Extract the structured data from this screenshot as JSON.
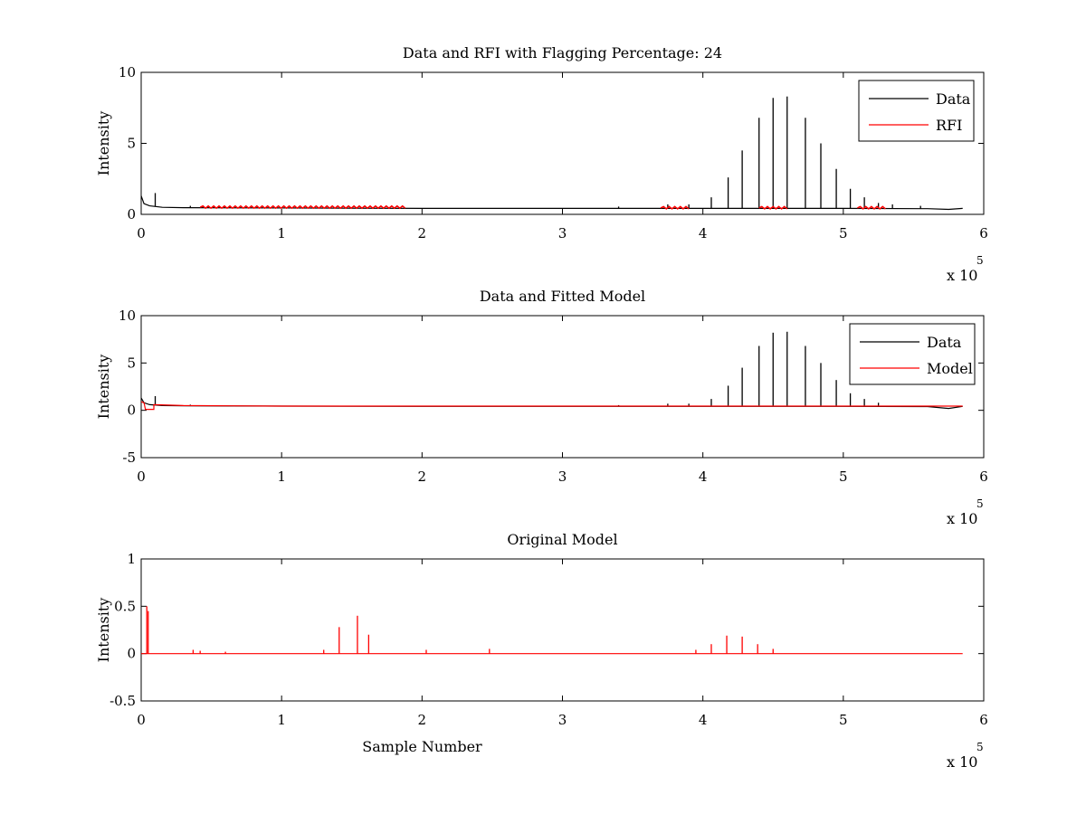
{
  "chart_data": [
    {
      "type": "line",
      "title": "Data and RFI with Flagging Percentage: 24",
      "xlabel": "",
      "ylabel": "Intensity",
      "xlim": [
        0,
        6
      ],
      "ylim": [
        0,
        10
      ],
      "xticks": [
        "0",
        "1",
        "2",
        "3",
        "4",
        "5",
        "6"
      ],
      "yticks": [
        "0",
        "5",
        "10"
      ],
      "x_unit": "x 10",
      "x_exponent": "5",
      "legend_position": "top-right",
      "grid": false,
      "series": [
        {
          "name": "Data",
          "color": "#000000",
          "baseline": [
            [
              0,
              1.3
            ],
            [
              0.02,
              0.75
            ],
            [
              0.06,
              0.6
            ],
            [
              0.15,
              0.5
            ],
            [
              0.3,
              0.47
            ],
            [
              1.0,
              0.45
            ],
            [
              2.0,
              0.42
            ],
            [
              3.0,
              0.42
            ],
            [
              4.0,
              0.42
            ],
            [
              5.0,
              0.42
            ],
            [
              5.6,
              0.4
            ],
            [
              5.75,
              0.35
            ],
            [
              5.85,
              0.42
            ]
          ],
          "spikes": [
            [
              0.1,
              1.5
            ],
            [
              0.35,
              0.6
            ],
            [
              3.4,
              0.55
            ],
            [
              3.75,
              0.7
            ],
            [
              3.9,
              0.7
            ],
            [
              4.06,
              1.2
            ],
            [
              4.18,
              2.6
            ],
            [
              4.28,
              4.5
            ],
            [
              4.4,
              6.8
            ],
            [
              4.5,
              8.2
            ],
            [
              4.6,
              8.3
            ],
            [
              4.73,
              6.8
            ],
            [
              4.84,
              5.0
            ],
            [
              4.95,
              3.2
            ],
            [
              5.05,
              1.8
            ],
            [
              5.15,
              1.2
            ],
            [
              5.25,
              0.8
            ],
            [
              5.35,
              0.7
            ],
            [
              5.55,
              0.6
            ]
          ]
        },
        {
          "name": "RFI",
          "color": "#ff0000",
          "segments": [
            [
              0.42,
              1.88,
              0.5
            ],
            [
              3.7,
              3.9,
              0.45
            ],
            [
              4.4,
              4.6,
              0.45
            ],
            [
              5.1,
              5.3,
              0.45
            ]
          ]
        }
      ]
    },
    {
      "type": "line",
      "title": "Data and Fitted Model",
      "xlabel": "",
      "ylabel": "Intensity",
      "xlim": [
        0,
        6
      ],
      "ylim": [
        -5,
        10
      ],
      "xticks": [
        "0",
        "1",
        "2",
        "3",
        "4",
        "5",
        "6"
      ],
      "yticks": [
        "-5",
        "0",
        "5",
        "10"
      ],
      "x_unit": "x 10",
      "x_exponent": "5",
      "legend_position": "top-right",
      "grid": false,
      "series": [
        {
          "name": "Data",
          "color": "#000000",
          "baseline": [
            [
              0,
              1.3
            ],
            [
              0.02,
              0.8
            ],
            [
              0.06,
              0.6
            ],
            [
              0.15,
              0.5
            ],
            [
              0.3,
              0.47
            ],
            [
              1.0,
              0.45
            ],
            [
              2.0,
              0.42
            ],
            [
              3.0,
              0.42
            ],
            [
              4.0,
              0.42
            ],
            [
              5.0,
              0.42
            ],
            [
              5.6,
              0.4
            ],
            [
              5.75,
              0.2
            ],
            [
              5.85,
              0.42
            ]
          ],
          "spikes": [
            [
              0.1,
              1.5
            ],
            [
              0.35,
              0.6
            ],
            [
              3.4,
              0.55
            ],
            [
              3.75,
              0.7
            ],
            [
              3.9,
              0.7
            ],
            [
              4.06,
              1.2
            ],
            [
              4.18,
              2.6
            ],
            [
              4.28,
              4.5
            ],
            [
              4.4,
              6.8
            ],
            [
              4.5,
              8.2
            ],
            [
              4.6,
              8.3
            ],
            [
              4.73,
              6.8
            ],
            [
              4.84,
              5.0
            ],
            [
              4.95,
              3.2
            ],
            [
              5.05,
              1.8
            ],
            [
              5.15,
              1.2
            ],
            [
              5.25,
              0.8
            ]
          ]
        },
        {
          "name": "Model",
          "color": "#ff0000",
          "baseline": [
            [
              0,
              0.9
            ],
            [
              0.02,
              0.8
            ],
            [
              0.03,
              0.1
            ],
            [
              0.09,
              0.1
            ],
            [
              0.09,
              0.6
            ],
            [
              0.3,
              0.5
            ],
            [
              1.0,
              0.45
            ],
            [
              5.85,
              0.45
            ]
          ]
        }
      ]
    },
    {
      "type": "line",
      "title": "Original Model",
      "xlabel": "Sample Number",
      "ylabel": "Intensity",
      "xlim": [
        0,
        6
      ],
      "ylim": [
        -0.5,
        1
      ],
      "xticks": [
        "0",
        "1",
        "2",
        "3",
        "4",
        "5",
        "6"
      ],
      "yticks": [
        "-0.5",
        "0",
        "0.5",
        "1"
      ],
      "x_unit": "x 10",
      "x_exponent": "5",
      "grid": false,
      "series": [
        {
          "color": "#ff0000",
          "baseline": [
            [
              0,
              0.0
            ],
            [
              5.85,
              0.0
            ]
          ],
          "spikes": [
            [
              0.04,
              0.5
            ],
            [
              0.05,
              0.45
            ],
            [
              0.37,
              0.04
            ],
            [
              0.42,
              0.03
            ],
            [
              0.6,
              0.02
            ],
            [
              1.3,
              0.04
            ],
            [
              1.41,
              0.28
            ],
            [
              1.54,
              0.4
            ],
            [
              1.62,
              0.2
            ],
            [
              2.03,
              0.04
            ],
            [
              2.48,
              0.05
            ],
            [
              3.95,
              0.04
            ],
            [
              4.06,
              0.1
            ],
            [
              4.17,
              0.19
            ],
            [
              4.28,
              0.18
            ],
            [
              4.39,
              0.1
            ],
            [
              4.5,
              0.05
            ]
          ]
        }
      ]
    }
  ]
}
